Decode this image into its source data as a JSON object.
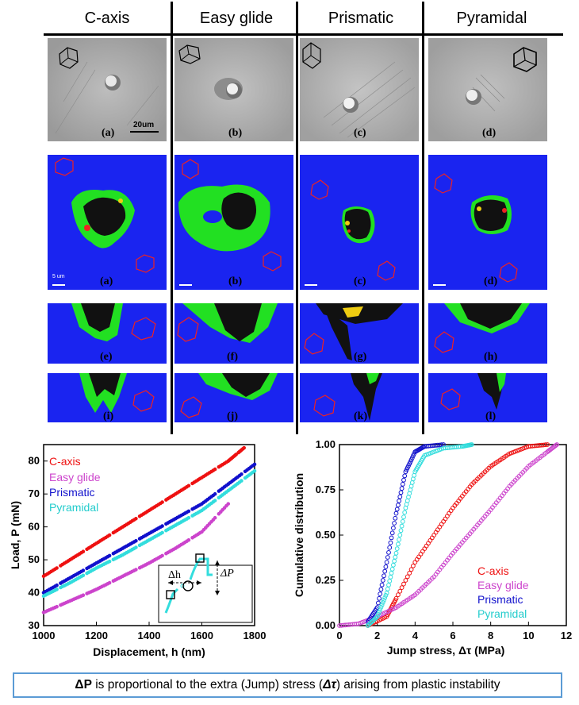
{
  "columns": [
    {
      "label": "C-axis",
      "color": "#e8201c"
    },
    {
      "label": "Easy glide",
      "color": "#cc33cc"
    },
    {
      "label": "Prismatic",
      "color": "#2222cc"
    },
    {
      "label": "Pyramidal",
      "color": "#33ccee"
    }
  ],
  "panel_labels": {
    "row1": [
      "(a)",
      "(b)",
      "(c)",
      "(d)"
    ],
    "row2": [
      "(a)",
      "(b)",
      "(c)",
      "(d)"
    ],
    "row3": [
      "(e)",
      "(f)",
      "(g)",
      "(h)"
    ],
    "row4": [
      "(i)",
      "(j)",
      "(k)",
      "(l)"
    ]
  },
  "scalebars": {
    "sem": "20um",
    "ebsd": "5 um"
  },
  "caption": {
    "before": "ΔP",
    "middle": " is proportional to the extra (Jump) stress (",
    "symbol": "Δτ",
    "after": ") arising from plastic instability"
  },
  "chart_data": [
    {
      "type": "scatter",
      "name": "load-displacement",
      "xlabel": "Displacement, h (nm)",
      "ylabel": "Load, P (mN)",
      "xlim": [
        1000,
        1800
      ],
      "ylim": [
        30,
        85
      ],
      "xticks": [
        "1000",
        "1200",
        "1400",
        "1600",
        "1800"
      ],
      "yticks": [
        "30",
        "40",
        "50",
        "60",
        "70",
        "80"
      ],
      "legend": [
        "C-axis",
        "Easy glide",
        "Prismatic",
        "Pyramidal"
      ],
      "inset_labels": [
        "Δh",
        "ΔP"
      ],
      "series": [
        {
          "name": "C-axis",
          "color": "#ee1111",
          "x": [
            1000,
            1100,
            1200,
            1300,
            1400,
            1500,
            1600,
            1700,
            1760
          ],
          "y": [
            45,
            50,
            55,
            60,
            65,
            70,
            75,
            80,
            84
          ]
        },
        {
          "name": "Easy glide",
          "color": "#cc44cc",
          "x": [
            1000,
            1100,
            1200,
            1300,
            1400,
            1500,
            1600,
            1700
          ],
          "y": [
            34,
            37.5,
            41,
            45,
            49,
            53.5,
            58.5,
            67
          ]
        },
        {
          "name": "Prismatic",
          "color": "#1111cc",
          "x": [
            1000,
            1100,
            1200,
            1300,
            1400,
            1500,
            1600,
            1700,
            1800
          ],
          "y": [
            40,
            44.5,
            49,
            53.5,
            58,
            62.5,
            67,
            73,
            79
          ]
        },
        {
          "name": "Pyramidal",
          "color": "#33dddd",
          "x": [
            1000,
            1100,
            1200,
            1300,
            1400,
            1500,
            1600,
            1700,
            1800
          ],
          "y": [
            39,
            43,
            47.5,
            51.5,
            56,
            60.5,
            65,
            71,
            77
          ]
        }
      ]
    },
    {
      "type": "line",
      "name": "cumulative-distribution",
      "xlabel": "Jump stress, Δτ (MPa)",
      "ylabel": "Cumulative distribution",
      "xlim": [
        0,
        12
      ],
      "ylim": [
        0,
        1
      ],
      "xticks": [
        "0",
        "2",
        "4",
        "6",
        "8",
        "10",
        "12"
      ],
      "yticks": [
        "0.00",
        "0.25",
        "0.50",
        "0.75",
        "1.00"
      ],
      "legend": [
        "C-axis",
        "Easy glide",
        "Prismatic",
        "Pyramidal"
      ],
      "series": [
        {
          "name": "C-axis",
          "color": "#ee1111",
          "x": [
            1.5,
            2.5,
            3.0,
            4.0,
            5.0,
            6.0,
            7.0,
            8.0,
            9.0,
            10.0,
            11.0
          ],
          "y": [
            0.0,
            0.05,
            0.15,
            0.35,
            0.5,
            0.65,
            0.78,
            0.88,
            0.95,
            0.99,
            1.0
          ]
        },
        {
          "name": "Easy glide",
          "color": "#cc44cc",
          "x": [
            0.0,
            1.0,
            2.0,
            3.0,
            4.0,
            5.0,
            6.0,
            7.0,
            8.0,
            9.0,
            10.0,
            11.0,
            11.5
          ],
          "y": [
            0.0,
            0.01,
            0.05,
            0.1,
            0.17,
            0.27,
            0.4,
            0.52,
            0.64,
            0.77,
            0.88,
            0.96,
            1.0
          ]
        },
        {
          "name": "Prismatic",
          "color": "#1111cc",
          "x": [
            1.5,
            2.0,
            2.5,
            3.0,
            3.5,
            4.0,
            4.5,
            5.5
          ],
          "y": [
            0.02,
            0.1,
            0.35,
            0.62,
            0.85,
            0.96,
            0.99,
            1.0
          ]
        },
        {
          "name": "Pyramidal",
          "color": "#33dddd",
          "x": [
            1.5,
            2.0,
            2.5,
            3.0,
            3.5,
            4.0,
            4.5,
            5.5,
            6.5,
            7.0
          ],
          "y": [
            0.0,
            0.05,
            0.18,
            0.4,
            0.65,
            0.85,
            0.94,
            0.98,
            0.99,
            1.0
          ]
        }
      ]
    }
  ]
}
